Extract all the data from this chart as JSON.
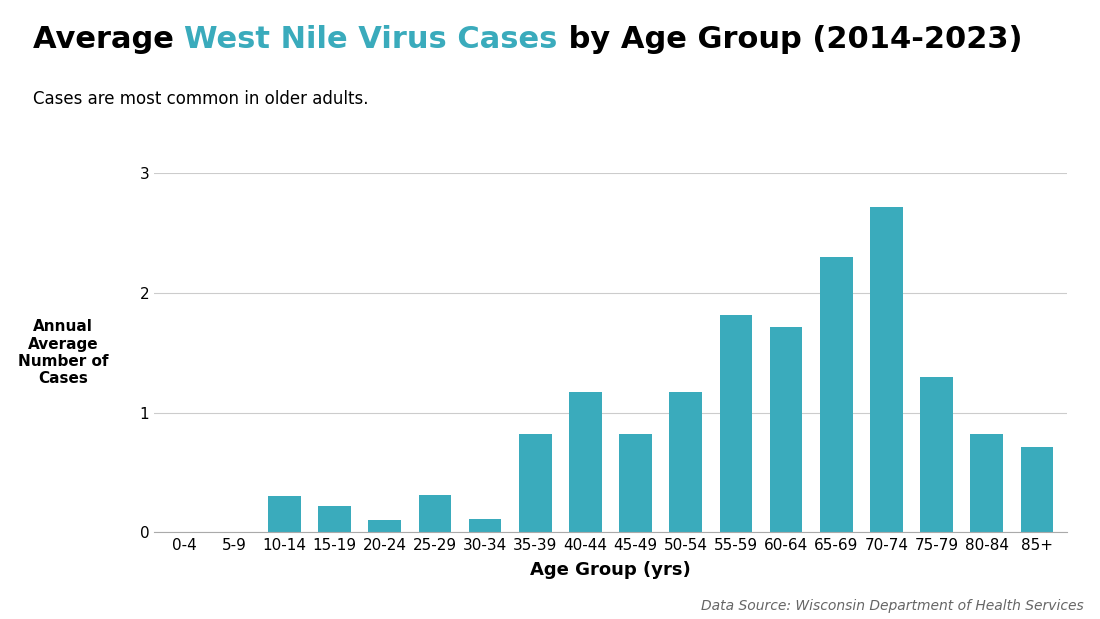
{
  "categories": [
    "0-4",
    "5-9",
    "10-14",
    "15-19",
    "20-24",
    "25-29",
    "30-34",
    "35-39",
    "40-44",
    "45-49",
    "50-54",
    "55-59",
    "60-64",
    "65-69",
    "70-74",
    "75-79",
    "80-84",
    "85+"
  ],
  "values": [
    0.0,
    0.0,
    0.3,
    0.22,
    0.1,
    0.31,
    0.11,
    0.82,
    1.17,
    0.82,
    1.17,
    1.82,
    1.72,
    2.3,
    2.72,
    1.3,
    0.82,
    0.71
  ],
  "bar_color": "#3aabbc",
  "title_prefix": "Average ",
  "title_highlight": "West Nile Virus Cases",
  "title_suffix": " by Age Group (2014-2023)",
  "subtitle": "Cases are most common in older adults.",
  "xlabel": "Age Group (yrs)",
  "ylabel": "Annual\nAverage\nNumber of\nCases",
  "ylim": [
    0,
    3
  ],
  "yticks": [
    0,
    1,
    2,
    3
  ],
  "datasource": "Data Source: Wisconsin Department of Health Services",
  "title_color": "#000000",
  "highlight_color": "#3aabbc",
  "background_color": "#ffffff",
  "title_fontsize": 22,
  "subtitle_fontsize": 12,
  "xlabel_fontsize": 13,
  "ylabel_fontsize": 11,
  "tick_fontsize": 11,
  "datasource_fontsize": 10
}
